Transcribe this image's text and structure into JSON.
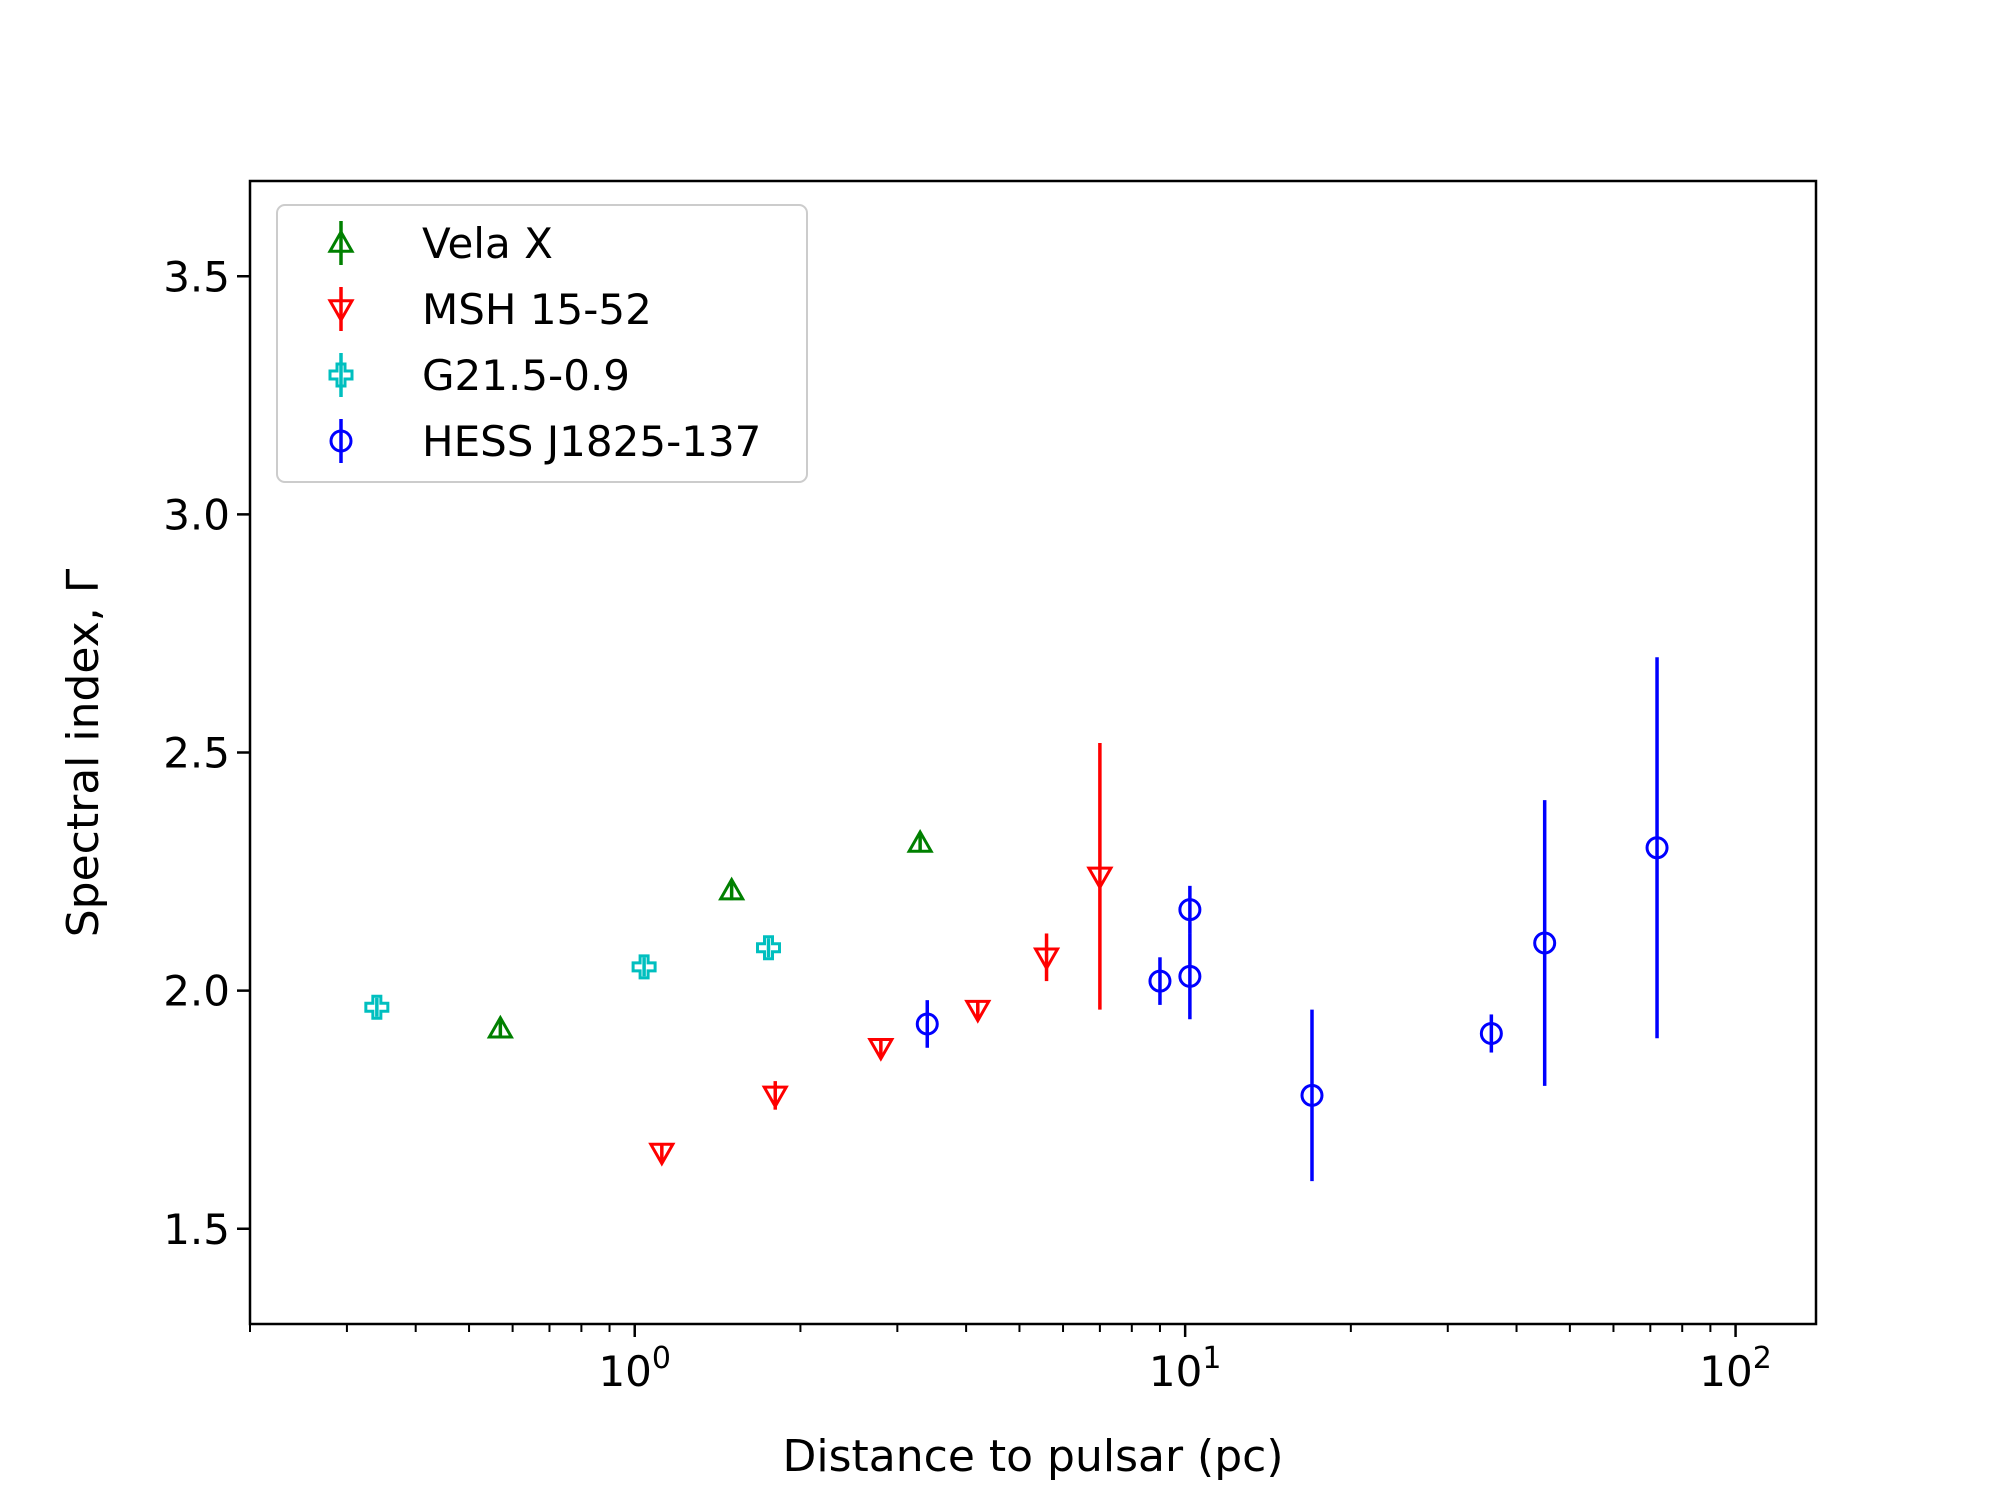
{
  "chart_data": {
    "type": "scatter",
    "title": "",
    "xlabel": "Distance to pulsar (pc)",
    "ylabel": "Spectral index, Γ",
    "xscale": "log",
    "xlim": [
      0.2,
      140
    ],
    "ylim": [
      1.3,
      3.7
    ],
    "grid": false,
    "legend_position": "top-left",
    "x_ticks": [
      {
        "value": 1,
        "base": "10",
        "exp": "0"
      },
      {
        "value": 10,
        "base": "10",
        "exp": "1"
      },
      {
        "value": 100,
        "base": "10",
        "exp": "2"
      }
    ],
    "y_ticks": [
      {
        "value": 1.5,
        "label": "1.5"
      },
      {
        "value": 2.0,
        "label": "2.0"
      },
      {
        "value": 2.5,
        "label": "2.5"
      },
      {
        "value": 3.0,
        "label": "3.0"
      },
      {
        "value": 3.5,
        "label": "3.5"
      }
    ],
    "series": [
      {
        "name": "Vela X",
        "color": "#008000",
        "marker": "triangle-up",
        "points": [
          {
            "x": 0.57,
            "y": 1.92,
            "yerr": 0.02
          },
          {
            "x": 1.5,
            "y": 2.21,
            "yerr": 0.02
          },
          {
            "x": 3.3,
            "y": 2.31,
            "yerr": 0.02
          }
        ]
      },
      {
        "name": "MSH 15-52",
        "color": "#ff0000",
        "marker": "triangle-down",
        "points": [
          {
            "x": 1.12,
            "y": 1.66,
            "yerr": 0.02
          },
          {
            "x": 1.8,
            "y": 1.78,
            "yerr": 0.03
          },
          {
            "x": 2.8,
            "y": 1.88,
            "yerr": 0.02
          },
          {
            "x": 4.2,
            "y": 1.96,
            "yerr": 0.02
          },
          {
            "x": 5.6,
            "y": 2.07,
            "yerr": 0.05
          },
          {
            "x": 7.0,
            "y": 2.24,
            "yerr": 0.28
          }
        ]
      },
      {
        "name": "G21.5-0.9",
        "color": "#00bfbf",
        "marker": "plus",
        "points": [
          {
            "x": 0.34,
            "y": 1.965,
            "yerr": 0.02
          },
          {
            "x": 1.04,
            "y": 2.05,
            "yerr": 0.02
          },
          {
            "x": 1.75,
            "y": 2.09,
            "yerr": 0.02
          }
        ]
      },
      {
        "name": "HESS J1825-137",
        "color": "#0000ff",
        "marker": "circle",
        "points": [
          {
            "x": 3.4,
            "y": 1.93,
            "yerr": 0.05
          },
          {
            "x": 9.0,
            "y": 2.02,
            "yerr": 0.05
          },
          {
            "x": 10.2,
            "y": 2.03,
            "yerr": 0.09
          },
          {
            "x": 10.2,
            "y": 2.17,
            "yerr": 0.05
          },
          {
            "x": 17.0,
            "y": 1.78,
            "yerr": 0.18
          },
          {
            "x": 36.0,
            "y": 1.91,
            "yerr": 0.04
          },
          {
            "x": 45.0,
            "y": 2.1,
            "yerr": 0.3
          },
          {
            "x": 72.0,
            "y": 2.3,
            "yerr": 0.4
          }
        ]
      }
    ]
  }
}
